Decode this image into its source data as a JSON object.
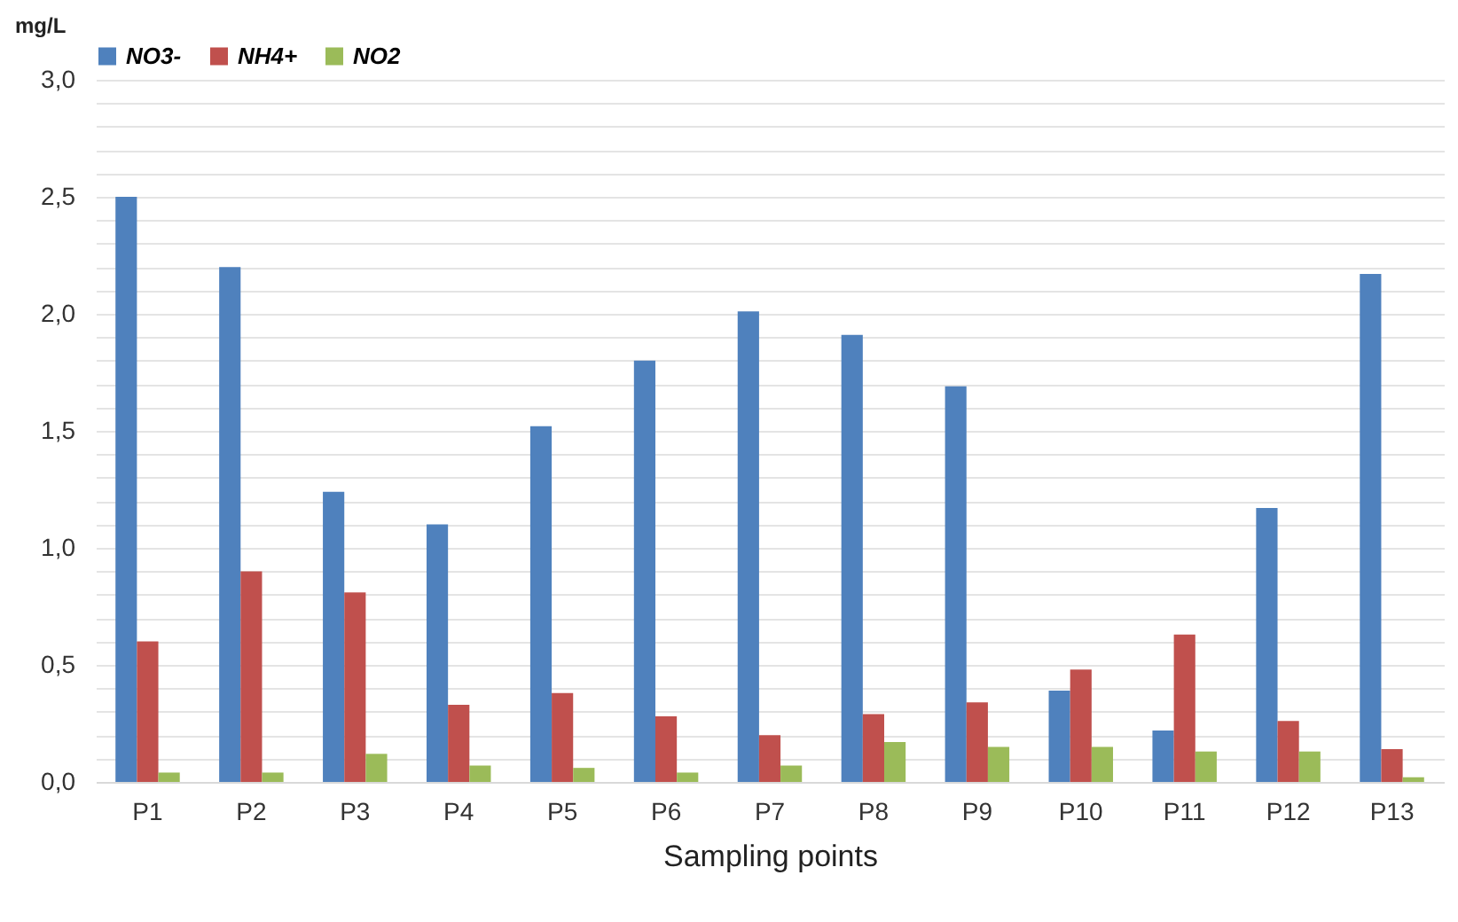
{
  "chart_data": {
    "type": "bar",
    "xlabel": "Sampling points",
    "ylabel": "mg/L",
    "categories": [
      "P1",
      "P2",
      "P3",
      "P4",
      "P5",
      "P6",
      "P7",
      "P8",
      "P9",
      "P10",
      "P11",
      "P12",
      "P13"
    ],
    "series": [
      {
        "name": "NO3-",
        "color": "#4f81bd",
        "values": [
          2.5,
          2.2,
          1.24,
          1.1,
          1.52,
          1.8,
          2.01,
          1.91,
          1.69,
          0.39,
          0.22,
          1.17,
          2.17
        ]
      },
      {
        "name": "NH4+",
        "color": "#c0504d",
        "values": [
          0.6,
          0.9,
          0.81,
          0.33,
          0.38,
          0.28,
          0.2,
          0.29,
          0.34,
          0.48,
          0.63,
          0.26,
          0.14
        ]
      },
      {
        "name": "NO2",
        "color": "#9bbb59",
        "values": [
          0.04,
          0.04,
          0.12,
          0.07,
          0.06,
          0.04,
          0.07,
          0.17,
          0.15,
          0.15,
          0.13,
          0.13,
          0.02
        ]
      }
    ],
    "ylim": [
      0,
      3
    ],
    "yticks": [
      {
        "value": 0,
        "label": "0,0"
      },
      {
        "value": 0.1,
        "label": null
      },
      {
        "value": 0.2,
        "label": null
      },
      {
        "value": 0.3,
        "label": null
      },
      {
        "value": 0.4,
        "label": null
      },
      {
        "value": 0.5,
        "label": "0,5"
      },
      {
        "value": 0.6,
        "label": null
      },
      {
        "value": 0.7,
        "label": null
      },
      {
        "value": 0.8,
        "label": null
      },
      {
        "value": 0.9,
        "label": null
      },
      {
        "value": 1,
        "label": "1,0"
      },
      {
        "value": 1.1,
        "label": null
      },
      {
        "value": 1.2,
        "label": null
      },
      {
        "value": 1.3,
        "label": null
      },
      {
        "value": 1.4,
        "label": null
      },
      {
        "value": 1.5,
        "label": "1,5"
      },
      {
        "value": 1.6,
        "label": null
      },
      {
        "value": 1.7,
        "label": null
      },
      {
        "value": 1.8,
        "label": null
      },
      {
        "value": 1.9,
        "label": null
      },
      {
        "value": 2,
        "label": "2,0"
      },
      {
        "value": 2.1,
        "label": null
      },
      {
        "value": 2.2,
        "label": null
      },
      {
        "value": 2.3,
        "label": null
      },
      {
        "value": 2.4,
        "label": null
      },
      {
        "value": 2.5,
        "label": "2,5"
      },
      {
        "value": 2.6,
        "label": null
      },
      {
        "value": 2.7,
        "label": null
      },
      {
        "value": 2.8,
        "label": null
      },
      {
        "value": 2.9,
        "label": null
      },
      {
        "value": 3,
        "label": "3,0"
      }
    ],
    "grid": "y",
    "legend": "top"
  }
}
